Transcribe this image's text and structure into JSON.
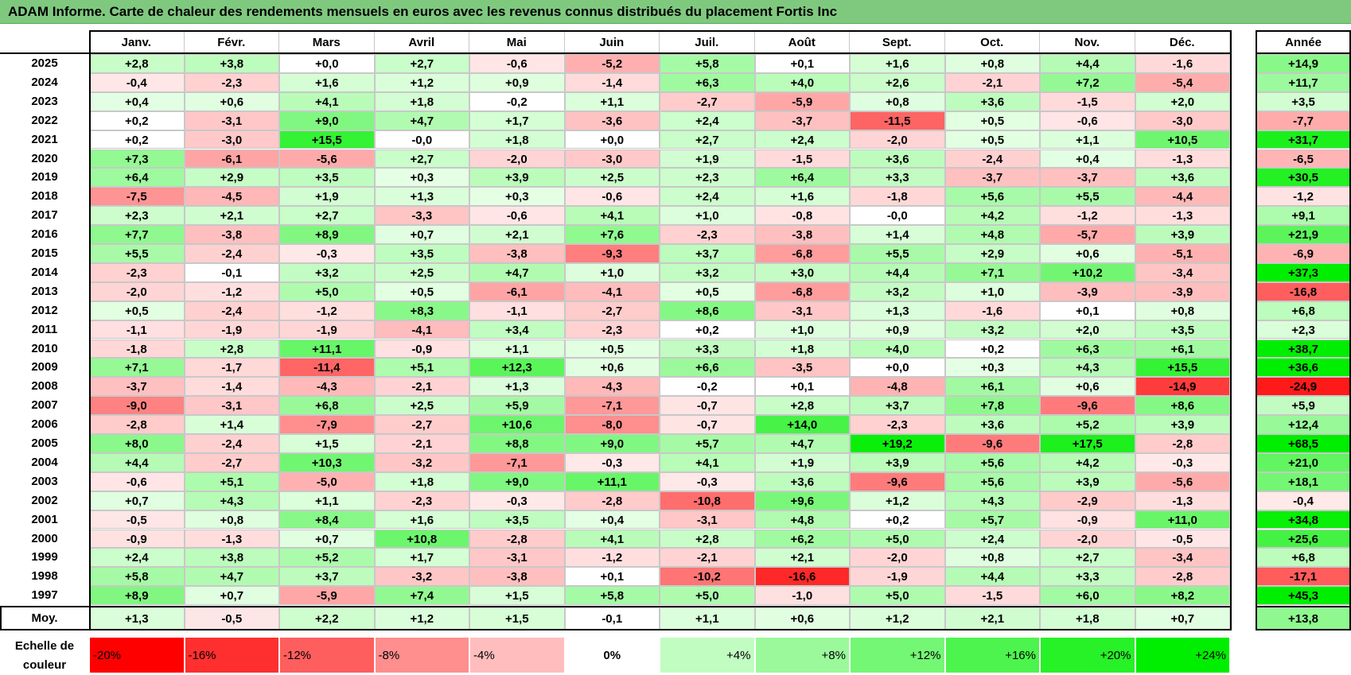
{
  "title": "ADAM Informe. Carte de chaleur des rendements mensuels en euros avec les revenus connus distribués du placement Fortis Inc",
  "chart_data": {
    "type": "heatmap",
    "columns": [
      "Janv.",
      "Févr.",
      "Mars",
      "Avril",
      "Mai",
      "Juin",
      "Juil.",
      "Août",
      "Sept.",
      "Oct.",
      "Nov.",
      "Déc."
    ],
    "annual_header": "Année",
    "average_label": "Moy.",
    "rows": [
      {
        "year": "2025",
        "values": [
          "+2,8",
          "+3,8",
          "+0,0",
          "+2,7",
          "-0,6",
          "-5,2",
          "+5,8",
          "+0,1",
          "+1,6",
          "+0,8",
          "+4,4",
          "-1,6"
        ],
        "annual": "+14,9"
      },
      {
        "year": "2024",
        "values": [
          "-0,4",
          "-2,3",
          "+1,6",
          "+1,2",
          "+0,9",
          "-1,4",
          "+6,3",
          "+4,0",
          "+2,6",
          "-2,1",
          "+7,2",
          "-5,4"
        ],
        "annual": "+11,7"
      },
      {
        "year": "2023",
        "values": [
          "+0,4",
          "+0,6",
          "+4,1",
          "+1,8",
          "-0,2",
          "+1,1",
          "-2,7",
          "-5,9",
          "+0,8",
          "+3,6",
          "-1,5",
          "+2,0"
        ],
        "annual": "+3,5"
      },
      {
        "year": "2022",
        "values": [
          "+0,2",
          "-3,1",
          "+9,0",
          "+4,7",
          "+1,7",
          "-3,6",
          "+2,4",
          "-3,7",
          "-11,5",
          "+0,5",
          "-0,6",
          "-3,0"
        ],
        "annual": "-7,7"
      },
      {
        "year": "2021",
        "values": [
          "+0,2",
          "-3,0",
          "+15,5",
          "-0,0",
          "+1,8",
          "+0,0",
          "+2,7",
          "+2,4",
          "-2,0",
          "+0,5",
          "+1,1",
          "+10,5"
        ],
        "annual": "+31,7"
      },
      {
        "year": "2020",
        "values": [
          "+7,3",
          "-6,1",
          "-5,6",
          "+2,7",
          "-2,0",
          "-3,0",
          "+1,9",
          "-1,5",
          "+3,6",
          "-2,4",
          "+0,4",
          "-1,3"
        ],
        "annual": "-6,5"
      },
      {
        "year": "2019",
        "values": [
          "+6,4",
          "+2,9",
          "+3,5",
          "+0,3",
          "+3,9",
          "+2,5",
          "+2,3",
          "+6,4",
          "+3,3",
          "-3,7",
          "-3,7",
          "+3,6"
        ],
        "annual": "+30,5"
      },
      {
        "year": "2018",
        "values": [
          "-7,5",
          "-4,5",
          "+1,9",
          "+1,3",
          "+0,3",
          "-0,6",
          "+2,4",
          "+1,6",
          "-1,8",
          "+5,6",
          "+5,5",
          "-4,4"
        ],
        "annual": "-1,2"
      },
      {
        "year": "2017",
        "values": [
          "+2,3",
          "+2,1",
          "+2,7",
          "-3,3",
          "-0,6",
          "+4,1",
          "+1,0",
          "-0,8",
          "-0,0",
          "+4,2",
          "-1,2",
          "-1,3"
        ],
        "annual": "+9,1"
      },
      {
        "year": "2016",
        "values": [
          "+7,7",
          "-3,8",
          "+8,9",
          "+0,7",
          "+2,1",
          "+7,6",
          "-2,3",
          "-3,8",
          "+1,4",
          "+4,8",
          "-5,7",
          "+3,9"
        ],
        "annual": "+21,9"
      },
      {
        "year": "2015",
        "values": [
          "+5,5",
          "-2,4",
          "-0,3",
          "+3,5",
          "-3,8",
          "-9,3",
          "+3,7",
          "-6,8",
          "+5,5",
          "+2,9",
          "+0,6",
          "-5,1"
        ],
        "annual": "-6,9"
      },
      {
        "year": "2014",
        "values": [
          "-2,3",
          "-0,1",
          "+3,2",
          "+2,5",
          "+4,7",
          "+1,0",
          "+3,2",
          "+3,0",
          "+4,4",
          "+7,1",
          "+10,2",
          "-3,4"
        ],
        "annual": "+37,3"
      },
      {
        "year": "2013",
        "values": [
          "-2,0",
          "-1,2",
          "+5,0",
          "+0,5",
          "-6,1",
          "-4,1",
          "+0,5",
          "-6,8",
          "+3,2",
          "+1,0",
          "-3,9",
          "-3,9"
        ],
        "annual": "-16,8"
      },
      {
        "year": "2012",
        "values": [
          "+0,5",
          "-2,4",
          "-1,2",
          "+8,3",
          "-1,1",
          "-2,7",
          "+8,6",
          "-3,1",
          "+1,3",
          "-1,6",
          "+0,1",
          "+0,8"
        ],
        "annual": "+6,8"
      },
      {
        "year": "2011",
        "values": [
          "-1,1",
          "-1,9",
          "-1,9",
          "-4,1",
          "+3,4",
          "-2,3",
          "+0,2",
          "+1,0",
          "+0,9",
          "+3,2",
          "+2,0",
          "+3,5"
        ],
        "annual": "+2,3"
      },
      {
        "year": "2010",
        "values": [
          "-1,8",
          "+2,8",
          "+11,1",
          "-0,9",
          "+1,1",
          "+0,5",
          "+3,3",
          "+1,8",
          "+4,0",
          "+0,2",
          "+6,3",
          "+6,1"
        ],
        "annual": "+38,7"
      },
      {
        "year": "2009",
        "values": [
          "+7,1",
          "-1,7",
          "-11,4",
          "+5,1",
          "+12,3",
          "+0,6",
          "+6,6",
          "-3,5",
          "+0,0",
          "+0,3",
          "+4,3",
          "+15,5"
        ],
        "annual": "+36,6"
      },
      {
        "year": "2008",
        "values": [
          "-3,7",
          "-1,4",
          "-4,3",
          "-2,1",
          "+1,3",
          "-4,3",
          "-0,2",
          "+0,1",
          "-4,8",
          "+6,1",
          "+0,6",
          "-14,9"
        ],
        "annual": "-24,9"
      },
      {
        "year": "2007",
        "values": [
          "-9,0",
          "-3,1",
          "+6,8",
          "+2,5",
          "+5,9",
          "-7,1",
          "-0,7",
          "+2,8",
          "+3,7",
          "+7,8",
          "-9,6",
          "+8,6"
        ],
        "annual": "+5,9"
      },
      {
        "year": "2006",
        "values": [
          "-2,8",
          "+1,4",
          "-7,9",
          "-2,7",
          "+10,6",
          "-8,0",
          "-0,7",
          "+14,0",
          "-2,3",
          "+3,6",
          "+5,2",
          "+3,9"
        ],
        "annual": "+12,4"
      },
      {
        "year": "2005",
        "values": [
          "+8,0",
          "-2,4",
          "+1,5",
          "-2,1",
          "+8,8",
          "+9,0",
          "+5,7",
          "+4,7",
          "+19,2",
          "-9,6",
          "+17,5",
          "-2,8"
        ],
        "annual": "+68,5"
      },
      {
        "year": "2004",
        "values": [
          "+4,4",
          "-2,7",
          "+10,3",
          "-3,2",
          "-7,1",
          "-0,3",
          "+4,1",
          "+1,9",
          "+3,9",
          "+5,6",
          "+4,2",
          "-0,3"
        ],
        "annual": "+21,0"
      },
      {
        "year": "2003",
        "values": [
          "-0,6",
          "+5,1",
          "-5,0",
          "+1,8",
          "+9,0",
          "+11,1",
          "-0,3",
          "+3,6",
          "-9,6",
          "+5,6",
          "+3,9",
          "-5,6"
        ],
        "annual": "+18,1"
      },
      {
        "year": "2002",
        "values": [
          "+0,7",
          "+4,3",
          "+1,1",
          "-2,3",
          "-0,3",
          "-2,8",
          "-10,8",
          "+9,6",
          "+1,2",
          "+4,3",
          "-2,9",
          "-1,3"
        ],
        "annual": "-0,4"
      },
      {
        "year": "2001",
        "values": [
          "-0,5",
          "+0,8",
          "+8,4",
          "+1,6",
          "+3,5",
          "+0,4",
          "-3,1",
          "+4,8",
          "+0,2",
          "+5,7",
          "-0,9",
          "+11,0"
        ],
        "annual": "+34,8"
      },
      {
        "year": "2000",
        "values": [
          "-0,9",
          "-1,3",
          "+0,7",
          "+10,8",
          "-2,8",
          "+4,1",
          "+2,8",
          "+6,2",
          "+5,0",
          "+2,4",
          "-2,0",
          "-0,5"
        ],
        "annual": "+25,6"
      },
      {
        "year": "1999",
        "values": [
          "+2,4",
          "+3,8",
          "+5,2",
          "+1,7",
          "-3,1",
          "-1,2",
          "-2,1",
          "+2,1",
          "-2,0",
          "+0,8",
          "+2,7",
          "-3,4"
        ],
        "annual": "+6,8"
      },
      {
        "year": "1998",
        "values": [
          "+5,8",
          "+4,7",
          "+3,7",
          "-3,2",
          "-3,8",
          "+0,1",
          "-10,2",
          "-16,6",
          "-1,9",
          "+4,4",
          "+3,3",
          "-2,8"
        ],
        "annual": "-17,1"
      },
      {
        "year": "1997",
        "values": [
          "+8,9",
          "+0,7",
          "-5,9",
          "+7,4",
          "+1,5",
          "+5,8",
          "+5,0",
          "-1,0",
          "+5,0",
          "-1,5",
          "+6,0",
          "+8,2"
        ],
        "annual": "+45,3"
      }
    ],
    "average": {
      "values": [
        "+1,3",
        "-0,5",
        "+2,2",
        "+1,2",
        "+1,5",
        "-0,1",
        "+1,1",
        "+0,6",
        "+1,2",
        "+2,1",
        "+1,8",
        "+0,7"
      ],
      "annual": "+13,8"
    },
    "color_scale": {
      "label": "Echelle de couleur",
      "steps": [
        "-20%",
        "-16%",
        "-12%",
        "-8%",
        "-4%",
        "0%",
        "+4%",
        "+8%",
        "+12%",
        "+16%",
        "+20%",
        "+24%"
      ],
      "negative_color": "#ff0000",
      "positive_color": "#00ee00",
      "neutral_color": "#ffffff"
    }
  }
}
